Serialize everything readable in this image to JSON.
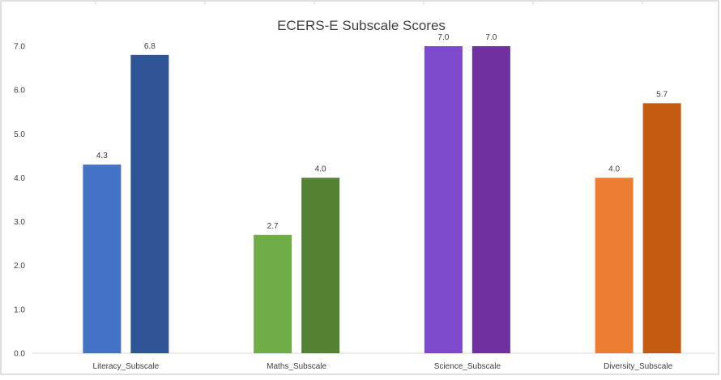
{
  "chart_data": {
    "type": "bar",
    "title": "ECERS-E Subscale Scores",
    "xlabel": "",
    "ylabel": "",
    "ylim": [
      0,
      7
    ],
    "yticks": [
      "0.0",
      "1.0",
      "2.0",
      "3.0",
      "4.0",
      "5.0",
      "6.0",
      "7.0"
    ],
    "grid": false,
    "legend": "none",
    "categories": [
      "Literacy_Subscale",
      "Maths_Subscale",
      "Science_Subscale",
      "Diversity_Subscale"
    ],
    "bars": [
      {
        "category": "Literacy_Subscale",
        "values": [
          4.3,
          6.8
        ],
        "labels": [
          "4.3",
          "6.8"
        ],
        "colors": [
          "#4472C4",
          "#2F5597"
        ]
      },
      {
        "category": "Maths_Subscale",
        "values": [
          2.7,
          4.0
        ],
        "labels": [
          "2.7",
          "4.0"
        ],
        "colors": [
          "#70AD47",
          "#548235"
        ]
      },
      {
        "category": "Science_Subscale",
        "values": [
          7.0,
          7.0
        ],
        "labels": [
          "7.0",
          "7.0"
        ],
        "colors": [
          "#7E4ACC",
          "#7030A0"
        ]
      },
      {
        "category": "Diversity_Subscale",
        "values": [
          4.0,
          5.7
        ],
        "labels": [
          "4.0",
          "5.7"
        ],
        "colors": [
          "#ED7D31",
          "#C55A11"
        ]
      }
    ]
  }
}
